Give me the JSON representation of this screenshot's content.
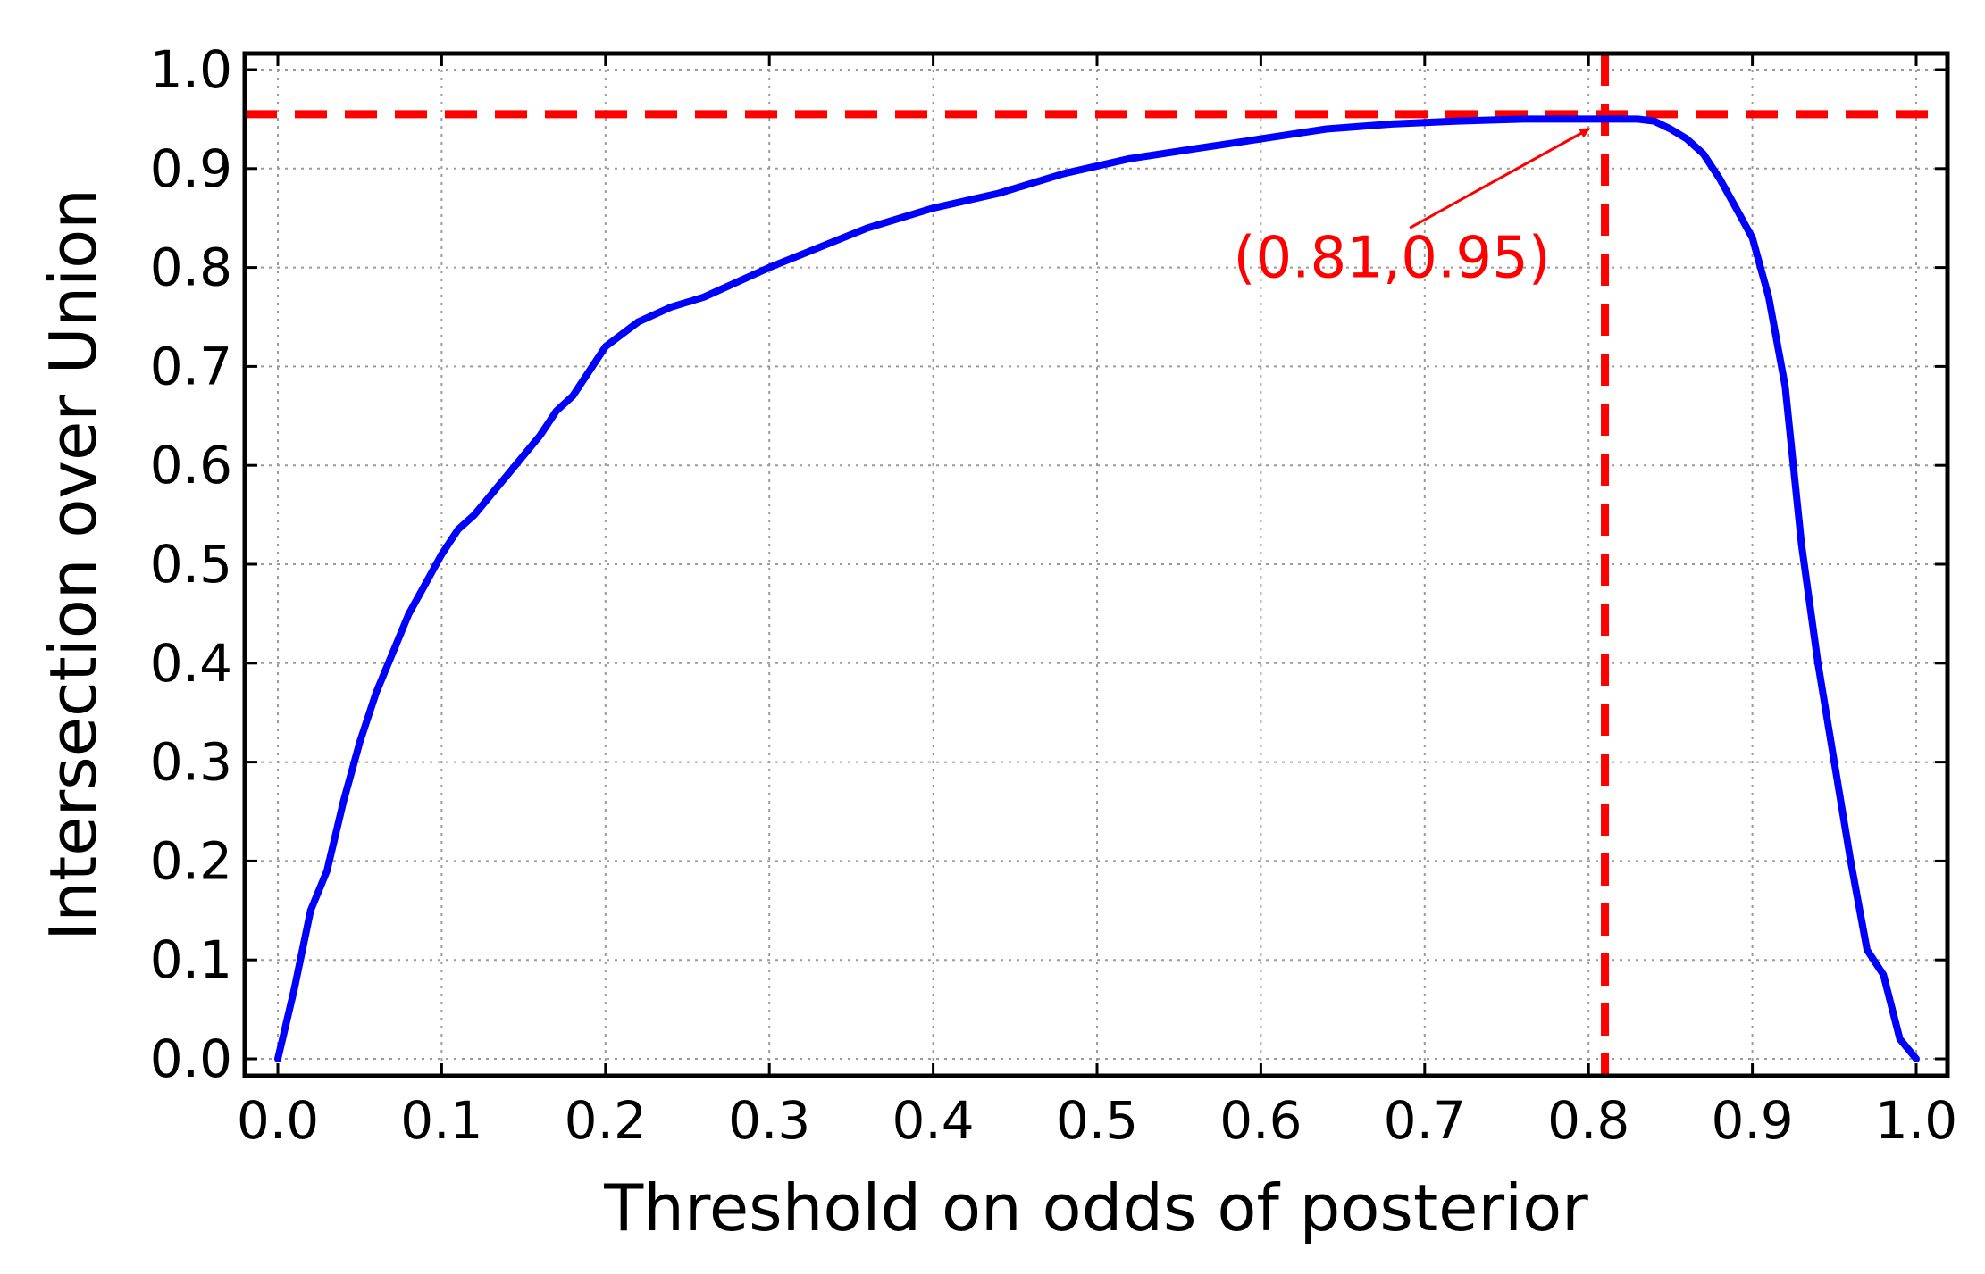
{
  "chart_data": {
    "type": "line",
    "title": "",
    "xlabel": "Threshold on odds of posterior",
    "ylabel": "Intersection over Union",
    "xlim": [
      0,
      1.0
    ],
    "ylim": [
      0,
      1.0
    ],
    "xticks": [
      "0.0",
      "0.1",
      "0.2",
      "0.3",
      "0.4",
      "0.5",
      "0.6",
      "0.7",
      "0.8",
      "0.9",
      "1.0"
    ],
    "yticks": [
      "0.0",
      "0.1",
      "0.2",
      "0.3",
      "0.4",
      "0.5",
      "0.6",
      "0.7",
      "0.8",
      "0.9",
      "1.0"
    ],
    "grid": true,
    "series": [
      {
        "color": "#0000ff",
        "x": [
          0.0,
          0.01,
          0.02,
          0.03,
          0.04,
          0.05,
          0.06,
          0.07,
          0.08,
          0.09,
          0.1,
          0.11,
          0.12,
          0.13,
          0.14,
          0.15,
          0.16,
          0.17,
          0.18,
          0.19,
          0.2,
          0.22,
          0.24,
          0.26,
          0.28,
          0.3,
          0.33,
          0.36,
          0.4,
          0.44,
          0.48,
          0.52,
          0.56,
          0.6,
          0.64,
          0.68,
          0.72,
          0.76,
          0.8,
          0.81,
          0.82,
          0.83,
          0.84,
          0.85,
          0.86,
          0.87,
          0.88,
          0.89,
          0.9,
          0.91,
          0.92,
          0.93,
          0.94,
          0.95,
          0.96,
          0.97,
          0.98,
          0.99,
          1.0
        ],
        "y": [
          0.0,
          0.07,
          0.15,
          0.19,
          0.26,
          0.32,
          0.37,
          0.41,
          0.45,
          0.48,
          0.51,
          0.535,
          0.55,
          0.57,
          0.59,
          0.61,
          0.63,
          0.655,
          0.67,
          0.695,
          0.72,
          0.745,
          0.76,
          0.77,
          0.785,
          0.8,
          0.82,
          0.84,
          0.86,
          0.875,
          0.895,
          0.91,
          0.92,
          0.93,
          0.94,
          0.945,
          0.948,
          0.95,
          0.95,
          0.95,
          0.95,
          0.95,
          0.948,
          0.94,
          0.93,
          0.915,
          0.89,
          0.86,
          0.83,
          0.77,
          0.68,
          0.52,
          0.4,
          0.3,
          0.2,
          0.11,
          0.085,
          0.02,
          0.0
        ]
      }
    ],
    "reference_lines": {
      "color": "#ff0000",
      "style": "dashed",
      "x": 0.81,
      "y": 0.955
    },
    "annotation": {
      "text": "(0.81,0.95)",
      "color": "#ff0000",
      "arrow_to": [
        0.81,
        0.94
      ],
      "text_at": [
        0.68,
        0.79
      ]
    }
  }
}
